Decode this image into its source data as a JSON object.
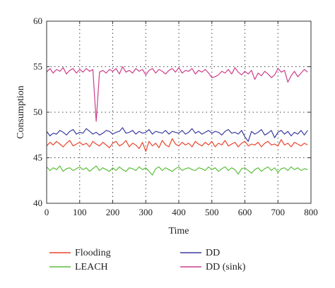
{
  "chart_data": {
    "type": "line",
    "xlabel": "Time",
    "ylabel": "Consumption",
    "xlim": [
      0,
      800
    ],
    "ylim": [
      40,
      60
    ],
    "xticks": [
      0,
      100,
      200,
      300,
      400,
      500,
      600,
      700,
      800
    ],
    "yticks": [
      40,
      45,
      50,
      55,
      60
    ],
    "grid": "dotted",
    "legend_position": "below",
    "x": [
      0,
      10,
      20,
      30,
      40,
      50,
      60,
      70,
      80,
      90,
      100,
      110,
      120,
      130,
      140,
      150,
      160,
      170,
      180,
      190,
      200,
      210,
      220,
      230,
      240,
      250,
      260,
      270,
      280,
      290,
      300,
      310,
      320,
      330,
      340,
      350,
      360,
      370,
      380,
      390,
      400,
      410,
      420,
      430,
      440,
      450,
      460,
      470,
      480,
      490,
      500,
      510,
      520,
      530,
      540,
      550,
      560,
      570,
      580,
      590,
      600,
      610,
      620,
      630,
      640,
      650,
      660,
      670,
      680,
      690,
      700,
      710,
      720,
      730,
      740,
      750,
      760,
      770,
      780,
      790
    ],
    "series": [
      {
        "name": "Flooding",
        "color": "#e8452c",
        "values": [
          46.3,
          46.7,
          46.4,
          46.8,
          46.5,
          46.2,
          46.6,
          46.9,
          46.3,
          46.5,
          46.7,
          46.4,
          46.6,
          46.2,
          46.8,
          46.5,
          46.3,
          46.7,
          46.4,
          46.1,
          46.6,
          46.8,
          46.3,
          46.5,
          46.9,
          46.2,
          46.6,
          46.4,
          46.0,
          46.7,
          45.7,
          46.8,
          46.3,
          46.6,
          46.1,
          46.9,
          46.4,
          46.2,
          47.1,
          46.5,
          46.3,
          46.7,
          46.4,
          46.6,
          46.2,
          46.8,
          46.5,
          46.3,
          46.7,
          46.4,
          46.8,
          46.2,
          46.6,
          46.4,
          46.9,
          46.3,
          46.5,
          46.7,
          46.2,
          46.6,
          46.8,
          46.3,
          46.5,
          46.4,
          46.7,
          46.2,
          46.6,
          46.8,
          46.4,
          46.5,
          46.3,
          47.0,
          46.4,
          46.6,
          46.2,
          46.7,
          46.5,
          46.3,
          46.6,
          46.4
        ]
      },
      {
        "name": "DD",
        "color": "#3a3aa0",
        "values": [
          47.9,
          47.4,
          47.7,
          47.6,
          48.0,
          47.8,
          47.5,
          47.9,
          48.1,
          47.6,
          47.8,
          47.7,
          48.2,
          47.9,
          47.6,
          47.8,
          47.5,
          47.7,
          48.0,
          47.9,
          47.6,
          47.8,
          47.9,
          48.3,
          47.7,
          47.8,
          48.0,
          47.6,
          47.9,
          47.7,
          47.8,
          48.1,
          47.6,
          47.9,
          47.8,
          47.7,
          48.0,
          47.6,
          47.9,
          47.8,
          47.7,
          48.0,
          47.6,
          47.8,
          48.2,
          47.7,
          47.9,
          47.6,
          47.8,
          48.0,
          47.7,
          47.9,
          47.8,
          47.5,
          47.9,
          48.1,
          47.7,
          47.8,
          47.6,
          48.0,
          47.3,
          46.8,
          47.9,
          47.6,
          47.8,
          48.1,
          47.5,
          47.7,
          48.0,
          47.2,
          47.8,
          48.0,
          47.6,
          47.9,
          47.4,
          47.8,
          47.6,
          48.0,
          47.5,
          48.0
        ]
      },
      {
        "name": "DD (sink)",
        "color": "#cc3f8c",
        "values": [
          54.4,
          54.8,
          54.3,
          54.7,
          54.5,
          54.9,
          54.2,
          54.6,
          54.8,
          54.3,
          54.7,
          54.4,
          54.8,
          54.5,
          54.7,
          49.0,
          54.4,
          54.6,
          54.3,
          54.7,
          54.5,
          54.8,
          54.2,
          55.0,
          54.4,
          54.6,
          54.3,
          54.8,
          54.5,
          54.7,
          54.1,
          54.6,
          54.8,
          54.3,
          54.7,
          54.5,
          54.2,
          54.6,
          54.8,
          54.4,
          54.9,
          54.3,
          54.6,
          54.5,
          54.8,
          54.2,
          54.6,
          54.4,
          54.7,
          54.3,
          53.8,
          53.9,
          54.1,
          54.5,
          54.3,
          54.7,
          54.2,
          54.9,
          54.4,
          54.1,
          54.5,
          54.2,
          54.6,
          53.6,
          54.3,
          54.0,
          54.5,
          54.2,
          53.8,
          54.1,
          54.8,
          54.4,
          54.6,
          53.3,
          54.0,
          54.5,
          53.9,
          54.3,
          54.7,
          54.4
        ]
      },
      {
        "name": "LEACH",
        "color": "#5cbf3a",
        "values": [
          44.0,
          43.6,
          43.9,
          43.7,
          44.1,
          43.5,
          43.8,
          43.9,
          43.6,
          43.8,
          44.0,
          43.7,
          43.9,
          43.5,
          43.8,
          44.1,
          43.6,
          43.9,
          43.7,
          43.5,
          43.9,
          43.6,
          44.0,
          43.7,
          43.5,
          43.9,
          43.8,
          43.6,
          44.0,
          43.7,
          43.9,
          43.5,
          43.1,
          43.8,
          44.0,
          43.6,
          43.9,
          43.7,
          43.5,
          43.8,
          44.0,
          43.6,
          43.8,
          43.9,
          43.7,
          43.6,
          43.9,
          43.8,
          43.6,
          44.0,
          43.7,
          43.9,
          43.5,
          43.8,
          44.0,
          43.6,
          43.9,
          43.7,
          43.2,
          43.8,
          43.9,
          43.6,
          43.3,
          43.7,
          43.9,
          43.5,
          43.8,
          44.0,
          43.6,
          43.9,
          43.4,
          43.8,
          43.9,
          43.6,
          44.0,
          43.7,
          43.9,
          43.6,
          43.8,
          43.7
        ]
      }
    ]
  },
  "legend": [
    {
      "label": "Flooding",
      "color": "#e8452c"
    },
    {
      "label": "DD",
      "color": "#3a3aa0"
    },
    {
      "label": "LEACH",
      "color": "#5cbf3a"
    },
    {
      "label": "DD (sink)",
      "color": "#cc3f8c"
    }
  ]
}
